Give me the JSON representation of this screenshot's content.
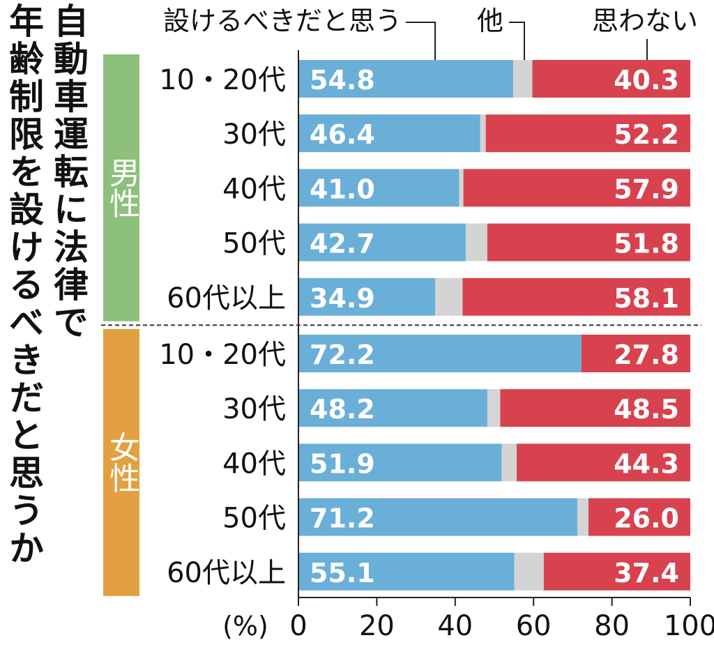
{
  "chart_data": {
    "type": "stacked-bar-horizontal",
    "title": "自動車運転に法律で\n年齢制限を設けるべきだと思うか",
    "x_label": "(%)",
    "categories": [
      "10・20代",
      "30代",
      "40代",
      "50代",
      "60代以上",
      "10・20代",
      "30代",
      "40代",
      "50代",
      "60代以上"
    ],
    "groups": [
      {
        "name": "男性",
        "color": "#8dc07a"
      },
      {
        "name": "女性",
        "color": "#e3a040"
      }
    ],
    "series": [
      {
        "name": "設けるべきだと思う",
        "color": "#6aafd8",
        "values": [
          54.8,
          46.4,
          41.0,
          42.7,
          34.9,
          72.2,
          48.2,
          51.9,
          71.2,
          55.1
        ],
        "value_labels": [
          "54.8",
          "46.4",
          "41.0",
          "42.7",
          "34.9",
          "72.2",
          "48.2",
          "51.9",
          "71.2",
          "55.1"
        ]
      },
      {
        "name": "他",
        "color": "#d4d4d4",
        "values": [
          4.9,
          1.4,
          1.1,
          5.5,
          7.0,
          0,
          3.3,
          3.8,
          2.8,
          7.5
        ]
      },
      {
        "name": "思わない",
        "color": "#d8424f",
        "values": [
          40.3,
          52.2,
          57.9,
          51.8,
          58.1,
          27.8,
          48.5,
          44.3,
          26.0,
          37.4
        ],
        "value_labels": [
          "40.3",
          "52.2",
          "57.9",
          "51.8",
          "58.1",
          "27.8",
          "48.5",
          "44.3",
          "26.0",
          "37.4"
        ]
      }
    ],
    "xlim": [
      0,
      100
    ],
    "xticks": [
      0,
      20,
      40,
      60,
      80,
      100
    ]
  }
}
